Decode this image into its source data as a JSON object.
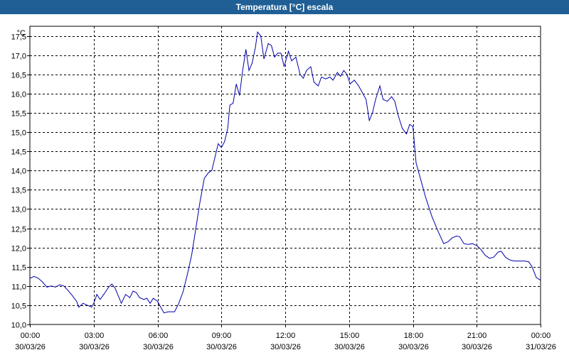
{
  "window": {
    "title": "Temperatura [°C] escala"
  },
  "chart_data": {
    "type": "line",
    "title": "Temperatura [°C] escala",
    "unit": "°C",
    "ylim": [
      10.0,
      17.75
    ],
    "yticks": [
      "10,0",
      "10,5",
      "11,0",
      "11,5",
      "12,0",
      "12,5",
      "13,0",
      "13,5",
      "14,0",
      "14,5",
      "15,0",
      "15,5",
      "16,0",
      "16,5",
      "17,0",
      "17,5"
    ],
    "xlim_hours": [
      0,
      24
    ],
    "xticks": [
      {
        "time": "00:00",
        "date": "30/03/26"
      },
      {
        "time": "03:00",
        "date": "30/03/26"
      },
      {
        "time": "06:00",
        "date": "30/03/26"
      },
      {
        "time": "09:00",
        "date": "30/03/26"
      },
      {
        "time": "12:00",
        "date": "30/03/26"
      },
      {
        "time": "15:00",
        "date": "30/03/26"
      },
      {
        "time": "18:00",
        "date": "30/03/26"
      },
      {
        "time": "21:00",
        "date": "30/03/26"
      },
      {
        "time": "00:00",
        "date": "31/03/26"
      }
    ],
    "grid": true,
    "line_color": "#0000aa",
    "series": [
      {
        "points": [
          [
            0.0,
            11.2
          ],
          [
            0.2,
            11.25
          ],
          [
            0.4,
            11.2
          ],
          [
            0.6,
            11.1
          ],
          [
            0.8,
            10.97
          ],
          [
            1.0,
            11.0
          ],
          [
            1.2,
            10.97
          ],
          [
            1.4,
            11.03
          ],
          [
            1.6,
            11.0
          ],
          [
            1.8,
            10.88
          ],
          [
            2.0,
            10.75
          ],
          [
            2.2,
            10.6
          ],
          [
            2.3,
            10.45
          ],
          [
            2.5,
            10.55
          ],
          [
            2.7,
            10.5
          ],
          [
            2.9,
            10.45
          ],
          [
            3.0,
            10.55
          ],
          [
            3.15,
            10.78
          ],
          [
            3.3,
            10.65
          ],
          [
            3.5,
            10.8
          ],
          [
            3.7,
            10.97
          ],
          [
            3.85,
            11.05
          ],
          [
            4.0,
            10.95
          ],
          [
            4.15,
            10.75
          ],
          [
            4.3,
            10.55
          ],
          [
            4.5,
            10.78
          ],
          [
            4.7,
            10.7
          ],
          [
            4.85,
            10.87
          ],
          [
            5.0,
            10.83
          ],
          [
            5.15,
            10.7
          ],
          [
            5.35,
            10.65
          ],
          [
            5.5,
            10.68
          ],
          [
            5.65,
            10.55
          ],
          [
            5.8,
            10.68
          ],
          [
            6.0,
            10.6
          ],
          [
            6.15,
            10.45
          ],
          [
            6.3,
            10.3
          ],
          [
            6.5,
            10.33
          ],
          [
            6.8,
            10.33
          ],
          [
            7.0,
            10.55
          ],
          [
            7.2,
            10.85
          ],
          [
            7.4,
            11.3
          ],
          [
            7.6,
            11.8
          ],
          [
            7.8,
            12.5
          ],
          [
            8.0,
            13.2
          ],
          [
            8.2,
            13.8
          ],
          [
            8.4,
            13.95
          ],
          [
            8.55,
            14.0
          ],
          [
            8.7,
            14.35
          ],
          [
            8.85,
            14.7
          ],
          [
            9.0,
            14.6
          ],
          [
            9.15,
            14.75
          ],
          [
            9.3,
            15.1
          ],
          [
            9.4,
            15.7
          ],
          [
            9.55,
            15.75
          ],
          [
            9.7,
            16.25
          ],
          [
            9.85,
            15.95
          ],
          [
            10.0,
            16.6
          ],
          [
            10.15,
            17.15
          ],
          [
            10.3,
            16.6
          ],
          [
            10.45,
            16.8
          ],
          [
            10.6,
            17.2
          ],
          [
            10.7,
            17.6
          ],
          [
            10.85,
            17.5
          ],
          [
            11.0,
            16.9
          ],
          [
            11.2,
            17.3
          ],
          [
            11.35,
            17.25
          ],
          [
            11.5,
            16.95
          ],
          [
            11.65,
            17.05
          ],
          [
            11.8,
            17.05
          ],
          [
            11.95,
            16.7
          ],
          [
            12.15,
            17.1
          ],
          [
            12.3,
            16.85
          ],
          [
            12.5,
            16.95
          ],
          [
            12.7,
            16.5
          ],
          [
            12.85,
            16.4
          ],
          [
            13.0,
            16.6
          ],
          [
            13.2,
            16.7
          ],
          [
            13.35,
            16.3
          ],
          [
            13.55,
            16.2
          ],
          [
            13.7,
            16.43
          ],
          [
            13.9,
            16.38
          ],
          [
            14.1,
            16.43
          ],
          [
            14.25,
            16.35
          ],
          [
            14.45,
            16.55
          ],
          [
            14.6,
            16.45
          ],
          [
            14.75,
            16.6
          ],
          [
            14.9,
            16.5
          ],
          [
            15.05,
            16.25
          ],
          [
            15.25,
            16.35
          ],
          [
            15.45,
            16.2
          ],
          [
            15.6,
            16.05
          ],
          [
            15.8,
            15.85
          ],
          [
            15.95,
            15.3
          ],
          [
            16.1,
            15.5
          ],
          [
            16.25,
            15.85
          ],
          [
            16.45,
            16.2
          ],
          [
            16.6,
            15.85
          ],
          [
            16.8,
            15.8
          ],
          [
            17.0,
            15.92
          ],
          [
            17.15,
            15.8
          ],
          [
            17.3,
            15.45
          ],
          [
            17.5,
            15.1
          ],
          [
            17.7,
            14.95
          ],
          [
            17.85,
            15.2
          ],
          [
            18.0,
            15.15
          ],
          [
            18.15,
            14.2
          ],
          [
            18.35,
            13.8
          ],
          [
            18.6,
            13.3
          ],
          [
            18.9,
            12.8
          ],
          [
            19.2,
            12.4
          ],
          [
            19.45,
            12.1
          ],
          [
            19.65,
            12.15
          ],
          [
            19.85,
            12.25
          ],
          [
            20.05,
            12.3
          ],
          [
            20.2,
            12.28
          ],
          [
            20.4,
            12.1
          ],
          [
            20.6,
            12.08
          ],
          [
            20.8,
            12.1
          ],
          [
            21.0,
            12.05
          ],
          [
            21.2,
            11.95
          ],
          [
            21.4,
            11.8
          ],
          [
            21.6,
            11.72
          ],
          [
            21.8,
            11.75
          ],
          [
            22.0,
            11.88
          ],
          [
            22.15,
            11.9
          ],
          [
            22.35,
            11.75
          ],
          [
            22.55,
            11.68
          ],
          [
            22.75,
            11.65
          ],
          [
            23.0,
            11.65
          ],
          [
            23.25,
            11.65
          ],
          [
            23.45,
            11.63
          ],
          [
            23.6,
            11.5
          ],
          [
            23.8,
            11.22
          ],
          [
            24.0,
            11.15
          ]
        ]
      }
    ]
  }
}
